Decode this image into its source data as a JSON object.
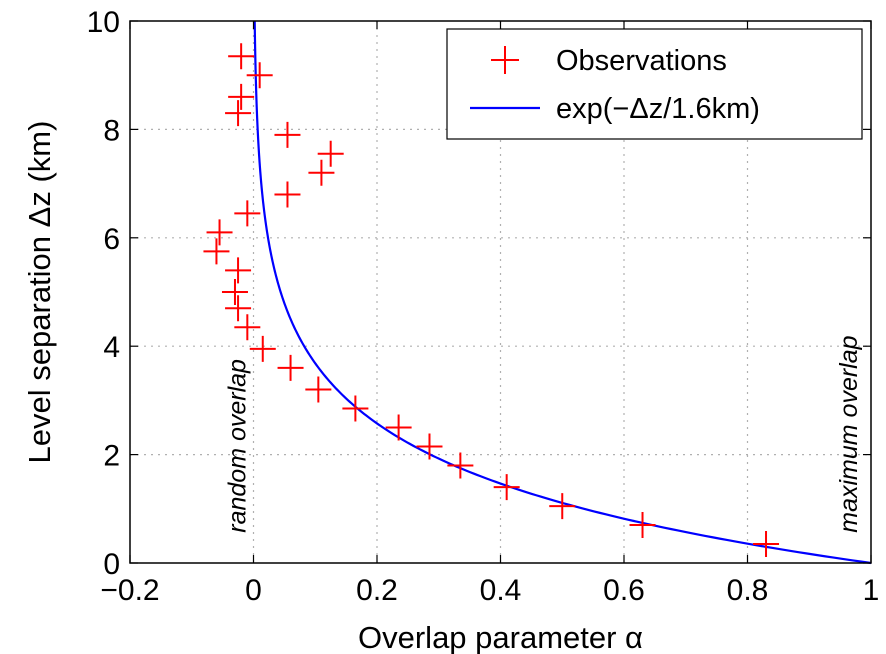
{
  "chart_data": {
    "type": "scatter",
    "xlabel": "Overlap parameter α",
    "ylabel": "Level separation Δz (km)",
    "xlim": [
      -0.2,
      1
    ],
    "ylim": [
      0,
      10
    ],
    "x_ticks": [
      "−0.2",
      "0",
      "0.2",
      "0.4",
      "0.6",
      "0.8",
      "1"
    ],
    "y_ticks": [
      "0",
      "2",
      "4",
      "6",
      "8",
      "10"
    ],
    "grid": true,
    "legend_position": "top-right",
    "series": [
      {
        "name": "Observations",
        "style": "marker-plus",
        "color": "#ff0000",
        "points": [
          {
            "x": -0.02,
            "y": 9.35
          },
          {
            "x": 0.01,
            "y": 9.0
          },
          {
            "x": -0.02,
            "y": 8.6
          },
          {
            "x": -0.025,
            "y": 8.3
          },
          {
            "x": 0.055,
            "y": 7.9
          },
          {
            "x": 0.125,
            "y": 7.55
          },
          {
            "x": 0.11,
            "y": 7.2
          },
          {
            "x": 0.055,
            "y": 6.8
          },
          {
            "x": -0.01,
            "y": 6.45
          },
          {
            "x": -0.055,
            "y": 6.1
          },
          {
            "x": -0.06,
            "y": 5.75
          },
          {
            "x": -0.025,
            "y": 5.4
          },
          {
            "x": -0.03,
            "y": 5.0
          },
          {
            "x": -0.025,
            "y": 4.7
          },
          {
            "x": -0.01,
            "y": 4.35
          },
          {
            "x": 0.015,
            "y": 3.95
          },
          {
            "x": 0.06,
            "y": 3.6
          },
          {
            "x": 0.105,
            "y": 3.2
          },
          {
            "x": 0.165,
            "y": 2.85
          },
          {
            "x": 0.235,
            "y": 2.5
          },
          {
            "x": 0.285,
            "y": 2.15
          },
          {
            "x": 0.335,
            "y": 1.8
          },
          {
            "x": 0.41,
            "y": 1.4
          },
          {
            "x": 0.5,
            "y": 1.05
          },
          {
            "x": 0.63,
            "y": 0.7
          },
          {
            "x": 0.83,
            "y": 0.35
          }
        ]
      },
      {
        "name": "exp(−Δz/1.6km)",
        "style": "line",
        "color": "#0000ff",
        "function": "exp(-y/1.6)"
      }
    ],
    "annotations": [
      {
        "text": "random overlap",
        "x": 0,
        "y": 0.3
      },
      {
        "text": "maximum overlap",
        "x": 1,
        "y": 0.3
      }
    ]
  }
}
